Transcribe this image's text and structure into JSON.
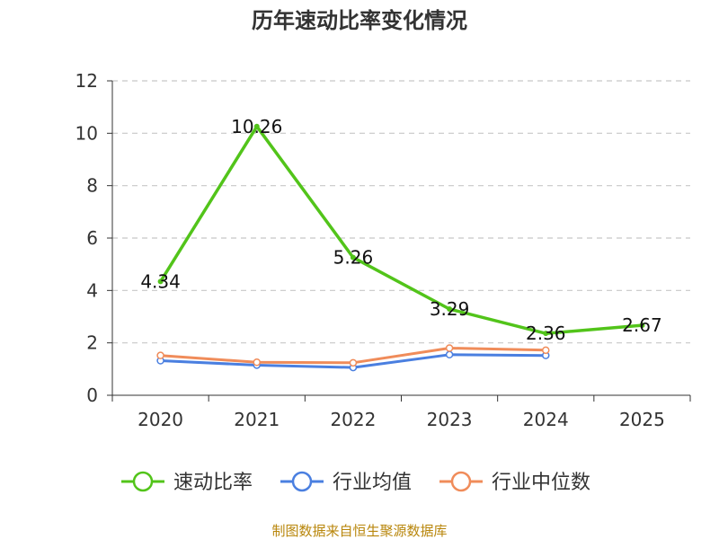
{
  "chart_data": {
    "type": "line",
    "title": "历年速动比率变化情况",
    "categories": [
      "2020",
      "2021",
      "2022",
      "2023",
      "2024",
      "2025"
    ],
    "ylim": [
      0,
      12
    ],
    "yticks": [
      0,
      2,
      4,
      6,
      8,
      10,
      12
    ],
    "grid": true,
    "legend_position": "bottom",
    "series": [
      {
        "name": "速动比率",
        "color": "#52c41a",
        "values": [
          4.34,
          10.26,
          5.26,
          3.29,
          2.36,
          2.67
        ],
        "labels": [
          "4.34",
          "10.26",
          "5.26",
          "3.29",
          "2.36",
          "2.67"
        ]
      },
      {
        "name": "行业均值",
        "color": "#4a7fe0",
        "values": [
          1.32,
          1.15,
          1.06,
          1.55,
          1.52,
          null
        ]
      },
      {
        "name": "行业中位数",
        "color": "#f08c5a",
        "values": [
          1.52,
          1.26,
          1.24,
          1.8,
          1.72,
          null
        ]
      }
    ],
    "source": "制图数据来自恒生聚源数据库"
  }
}
